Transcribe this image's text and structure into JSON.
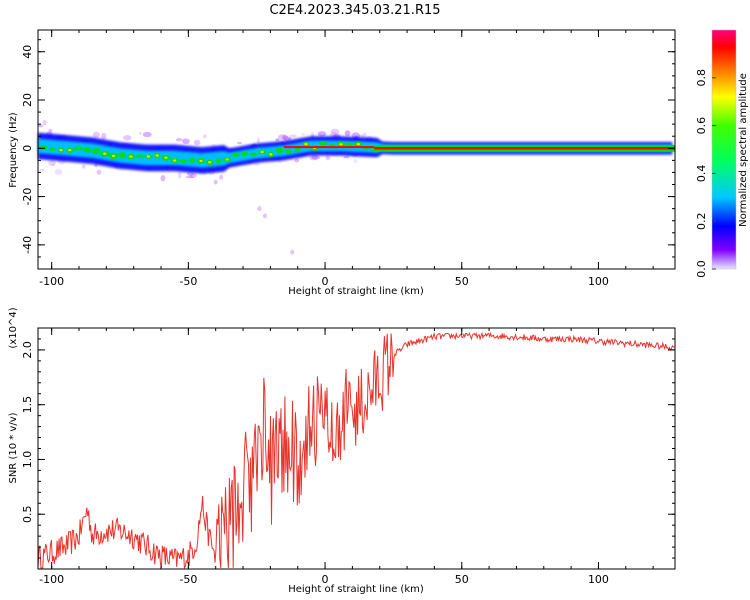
{
  "title": "C2E4.2023.345.03.21.R15",
  "colors": {
    "axis": "#000000",
    "line": "#e8332c",
    "band_core": "#ff0000",
    "band_mid": "#00e000",
    "band_edge": "#0000ff",
    "halo": "#b050ff"
  },
  "colorbar": {
    "label": "Normalized spectral amplitude",
    "range": [
      0.0,
      1.0
    ],
    "ticks": [
      0.0,
      0.2,
      0.4,
      0.6,
      0.8
    ],
    "tick_labels": [
      "0.0",
      "0.2",
      "0.4",
      "0.6",
      "0.8"
    ]
  },
  "chart_data": [
    {
      "type": "heatmap",
      "name": "spectrogram",
      "title": "C2E4.2023.345.03.21.R15",
      "xlabel": "Height of straight line (km)",
      "ylabel": "Frequency (Hz)",
      "xlim": [
        -105,
        128
      ],
      "ylim": [
        -50,
        49
      ],
      "xticks": [
        -100,
        -50,
        0,
        50,
        100
      ],
      "xtick_labels": [
        "-100",
        "-50",
        "0",
        "50",
        "100"
      ],
      "yticks": [
        -40,
        -20,
        0,
        20,
        40
      ],
      "ytick_labels": [
        "-40",
        "-20",
        "0",
        "20",
        "40"
      ],
      "band_center": [
        {
          "x": -105,
          "y": 1
        },
        {
          "x": -95,
          "y": 0
        },
        {
          "x": -85,
          "y": -1
        },
        {
          "x": -75,
          "y": -3
        },
        {
          "x": -65,
          "y": -4
        },
        {
          "x": -55,
          "y": -4
        },
        {
          "x": -45,
          "y": -5
        },
        {
          "x": -35,
          "y": -4
        },
        {
          "x": -25,
          "y": -2
        },
        {
          "x": -15,
          "y": -1
        },
        {
          "x": -5,
          "y": 1
        },
        {
          "x": 5,
          "y": 1
        },
        {
          "x": 15,
          "y": 0.5
        },
        {
          "x": 25,
          "y": 0
        },
        {
          "x": 128,
          "y": 0
        }
      ]
    },
    {
      "type": "line",
      "name": "snr",
      "xlabel": "Height of straight line (km)",
      "ylabel": "SNR (10 * v/v)",
      "multiplier": "(x10^4)",
      "xlim": [
        -105,
        128
      ],
      "ylim": [
        0,
        2.2
      ],
      "xticks": [
        -100,
        -50,
        0,
        50,
        100
      ],
      "xtick_labels": [
        "-100",
        "-50",
        "0",
        "50",
        "100"
      ],
      "yticks": [
        0.5,
        1.0,
        1.5,
        2.0
      ],
      "ytick_labels": [
        "0.5",
        "1.0",
        "1.5",
        "2.0"
      ],
      "series": [
        {
          "name": "SNR",
          "x": [
            -105,
            -100,
            -95,
            -90,
            -87,
            -85,
            -80,
            -75,
            -70,
            -65,
            -60,
            -55,
            -50,
            -47,
            -45,
            -43,
            -40,
            -35,
            -30,
            -25,
            -22,
            -20,
            -15,
            -10,
            -5,
            0,
            5,
            10,
            15,
            20,
            25,
            30,
            40,
            50,
            60,
            70,
            80,
            90,
            100,
            110,
            120,
            128
          ],
          "y": [
            0.1,
            0.15,
            0.2,
            0.3,
            0.55,
            0.3,
            0.35,
            0.35,
            0.3,
            0.2,
            0.12,
            0.08,
            0.12,
            0.25,
            0.6,
            0.35,
            0.1,
            0.4,
            0.7,
            1.0,
            1.5,
            0.9,
            1.1,
            1.0,
            1.2,
            1.25,
            1.3,
            1.4,
            1.55,
            1.75,
            1.95,
            2.05,
            2.12,
            2.13,
            2.13,
            2.12,
            2.1,
            2.1,
            2.08,
            2.06,
            2.04,
            2.02
          ]
        }
      ]
    }
  ]
}
